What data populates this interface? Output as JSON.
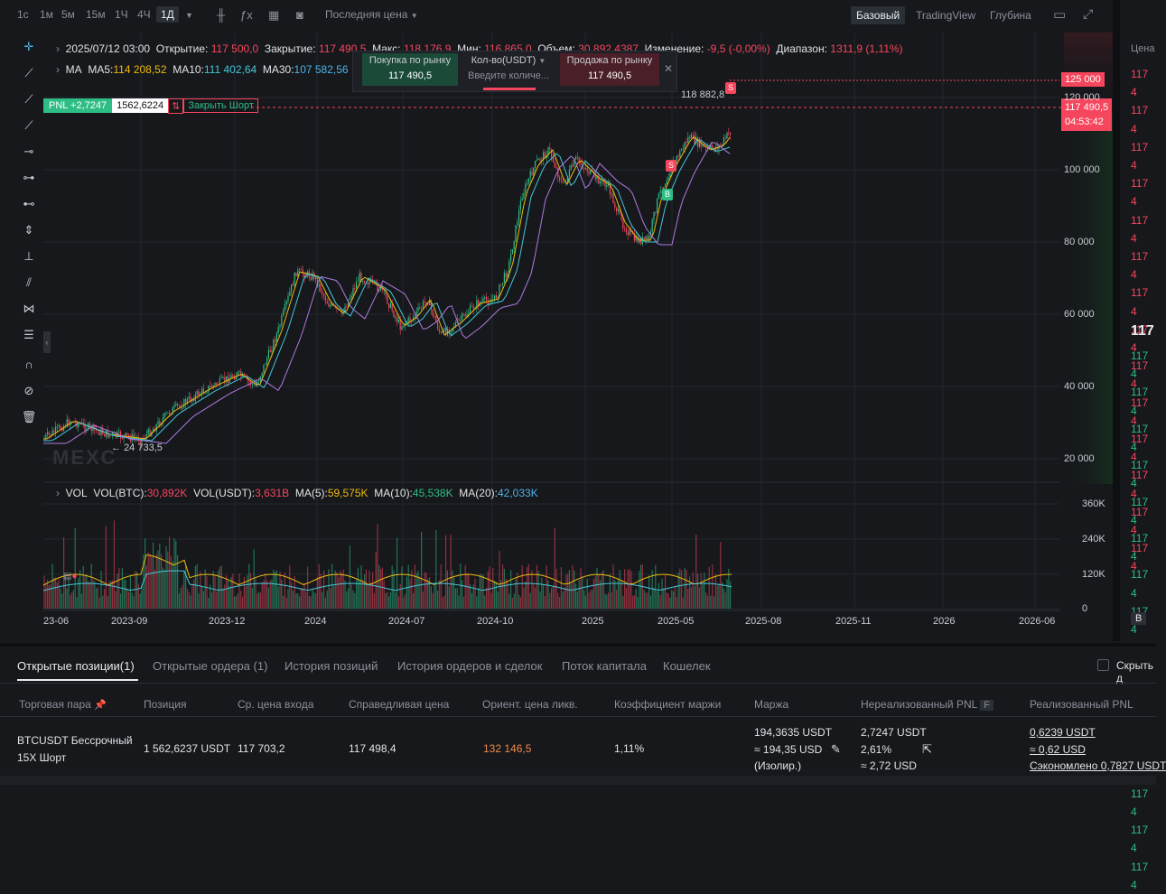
{
  "timeframes": [
    "1с",
    "1м",
    "5м",
    "15м",
    "1Ч",
    "4Ч",
    "1Д"
  ],
  "active_timeframe": "1Д",
  "price_mode": "Последняя цена",
  "views": [
    "Базовый",
    "TradingView",
    "Глубина"
  ],
  "active_view": "Базовый",
  "ohlc": {
    "date": "2025/07/12 03:00",
    "open_label": "Открытие:",
    "open": "117 500,0",
    "close_label": "Закрытие:",
    "close": "117 490,5",
    "high_label": "Макс:",
    "high": "118 176,9",
    "low_label": "Мин:",
    "low": "116 865,0",
    "volume_label": "Объем:",
    "volume": "30 892,4387",
    "change_label": "Изменение:",
    "change": "-9,5 (-0,00%)",
    "range_label": "Диапазон:",
    "range": "1311,9 (1,11%)"
  },
  "ma": {
    "label": "MA",
    "ma5_label": "MA5:",
    "ma5": "114 208,52",
    "ma10_label": "MA10:",
    "ma10": "111 402,64",
    "ma30_label": "MA30:",
    "ma30": "107 582,56"
  },
  "trade": {
    "buy_label": "Покупка по рынку",
    "buy_price": "117 490,5",
    "qty_label": "Кол-во(USDT)",
    "qty_placeholder": "Введите количе...",
    "sell_label": "Продажа по рынку",
    "sell_price": "117 490,5"
  },
  "position_line": {
    "pnl": "PNL +2,7247",
    "size": "1562,6224",
    "close_label": "Закрыть Шорт"
  },
  "price_labels": {
    "target": "125 000",
    "current": "117 490,5",
    "countdown": "04:53:42",
    "high_mark": "118 882,8",
    "low_mark": "24 733,5"
  },
  "markers": {
    "sell": "S",
    "buy": "B"
  },
  "watermark": "MEXC",
  "y_axis": [
    "120 000",
    "100 000",
    "80 000",
    "60 000",
    "40 000",
    "20 000"
  ],
  "vol_axis": [
    "360K",
    "240K",
    "120K",
    "0"
  ],
  "x_axis": [
    "23-06",
    "2023-09",
    "2023-12",
    "2024",
    "2024-07",
    "2024-10",
    "2025",
    "2025-05",
    "2025-08",
    "2025-11",
    "2026",
    "2026-06"
  ],
  "vol": {
    "label": "VOL",
    "btc_label": "VOL(BTC):",
    "btc": "30,892K",
    "usdt_label": "VOL(USDT):",
    "usdt": "3,631B",
    "ma5_label": "MA(5):",
    "ma5": "59,575K",
    "ma10_label": "MA(10):",
    "ma10": "45,538K",
    "ma20_label": "MA(20):",
    "ma20": "42,033K"
  },
  "orderbook": {
    "header": "Цена",
    "red_prices": [
      "117 4",
      "117 4",
      "117 4",
      "117 4",
      "117 4",
      "117 4",
      "117 4",
      "117 4",
      "117 4",
      "117 4",
      "117 4",
      "117 4",
      "117 4",
      "117 4"
    ],
    "last": "117",
    "green_prices": [
      "117 4",
      "117 4",
      "117 4",
      "117 4",
      "117 4",
      "117 4",
      "117 4",
      "117 4",
      "117 4",
      "117 4",
      "117 4",
      "117 4",
      "117 4",
      "117 4",
      "117 4"
    ],
    "footer": "B"
  },
  "tabs": [
    "Открытые позиции(1)",
    "Открытые ордера (1)",
    "История позиций",
    "История ордеров и сделок",
    "Поток капитала",
    "Кошелек"
  ],
  "active_tab": "Открытые позиции(1)",
  "hide_label": "Скрыть д",
  "columns": [
    "Торговая пара",
    "Позиция",
    "Ср. цена входа",
    "Справедливая цена",
    "Ориент. цена ликв.",
    "Коэффициент маржи",
    "Маржа",
    "Нереализованный PNL",
    "Реализованный PNL"
  ],
  "row": {
    "pair": "BTCUSDT Бессрочный",
    "leverage": "15X Шорт",
    "position": "1 562,6237 USDT",
    "entry": "117 703,2",
    "fair": "117 498,4",
    "liq": "132 146,5",
    "margin_ratio": "1,11%",
    "margin1": "194,3635 USDT",
    "margin2": "≈ 194,35 USD",
    "margin3": "(Изолир.)",
    "upnl1": "2,7247 USDT",
    "upnl2": "2,61%",
    "upnl3": "≈ 2,72 USD",
    "rpnl1": "0,6239 USDT",
    "rpnl2": "≈ 0,62 USD",
    "rpnl3": "Сэкономлено 0,7827 USDT"
  },
  "colors": {
    "up": "#2ebd85",
    "down": "#f6465d",
    "ma5": "#f0b90b",
    "ma10": "#45c6d6",
    "ma30": "#b07be0"
  }
}
